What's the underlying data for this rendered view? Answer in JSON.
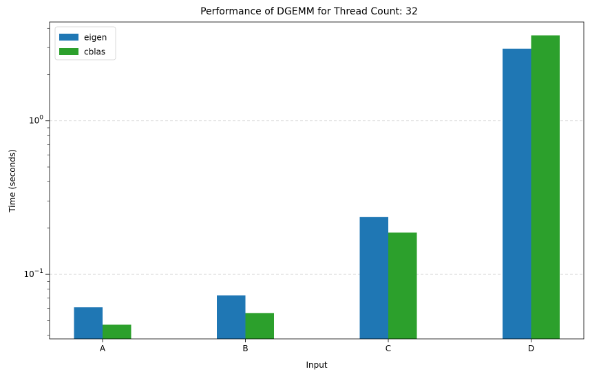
{
  "chart_data": {
    "type": "bar",
    "title": "Performance of DGEMM for Thread Count: 32",
    "xlabel": "Input",
    "ylabel": "Time (seconds)",
    "yscale": "log",
    "ylim": [
      0.038,
      4.4
    ],
    "categories": [
      "A",
      "B",
      "C",
      "D"
    ],
    "series": [
      {
        "name": "eigen",
        "color": "#1f77b4",
        "values": [
          0.061,
          0.073,
          0.236,
          2.95
        ]
      },
      {
        "name": "cblas",
        "color": "#2ca02c",
        "values": [
          0.047,
          0.056,
          0.187,
          3.6
        ]
      }
    ],
    "yticks": [
      {
        "value": 0.1,
        "base": "10",
        "exp": "−1"
      },
      {
        "value": 1,
        "base": "10",
        "exp": "0"
      }
    ],
    "grid": "y-major-dashed",
    "legend": "top-left"
  }
}
